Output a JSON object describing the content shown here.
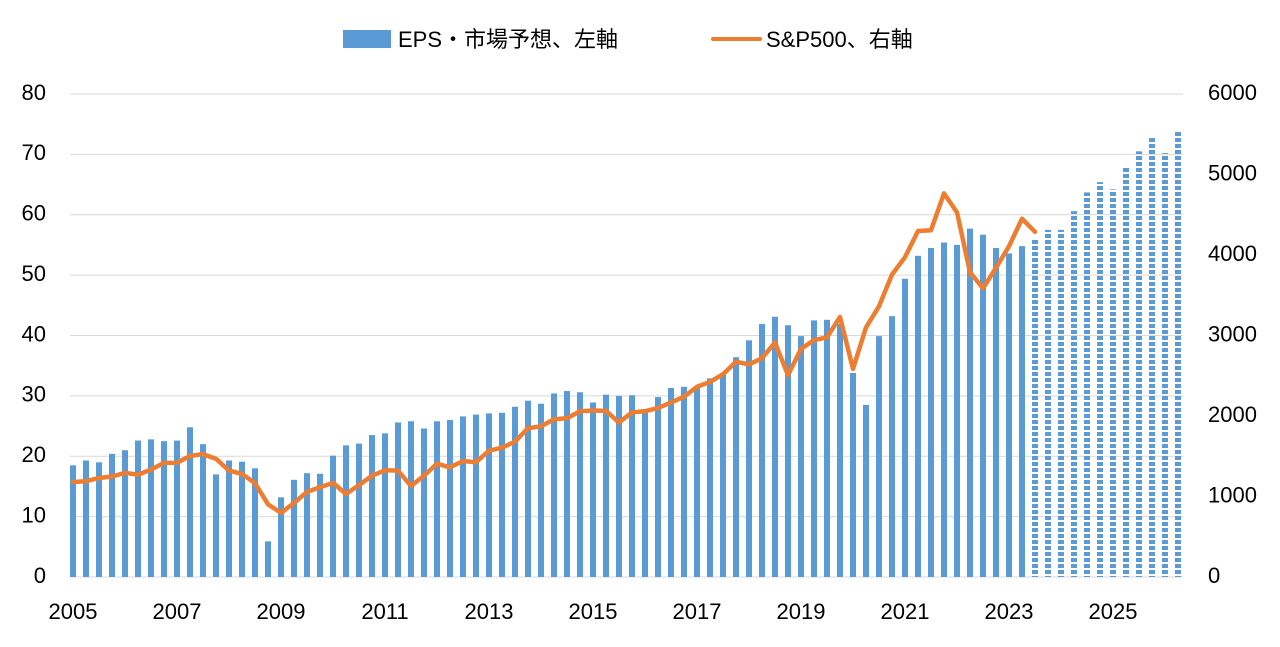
{
  "legend": {
    "eps_label": "EPS・市場予想、左軸",
    "sp500_label": "S&P500、右軸"
  },
  "colors": {
    "eps": "#5B9BD5",
    "sp500": "#ED7D31",
    "grid": "#D9D9D9"
  },
  "chart_data": {
    "type": "bar",
    "title": "",
    "start_year": 2005,
    "periods_per_year": 4,
    "x_tick_labels": [
      "2005",
      "2007",
      "2009",
      "2011",
      "2013",
      "2015",
      "2017",
      "2019",
      "2021",
      "2023",
      "2025"
    ],
    "y_left": {
      "min": 0,
      "max": 80,
      "step": 10,
      "ticks": [
        "0",
        "10",
        "20",
        "30",
        "40",
        "50",
        "60",
        "70",
        "80"
      ]
    },
    "y_right": {
      "min": 0,
      "max": 6000,
      "step": 1000,
      "ticks": [
        "0",
        "1000",
        "2000",
        "3000",
        "4000",
        "5000",
        "6000"
      ]
    },
    "grid": true,
    "legend_position": "top-center",
    "series": [
      {
        "name": "EPS・市場予想、左軸",
        "type": "bar",
        "axis": "left",
        "forecast_start_index": 74,
        "values": [
          18.5,
          19.3,
          19.0,
          20.4,
          21.0,
          22.6,
          22.8,
          22.5,
          22.6,
          24.8,
          22.0,
          17.0,
          19.3,
          19.1,
          18.0,
          5.9,
          13.2,
          16.1,
          17.2,
          17.1,
          20.1,
          21.8,
          22.1,
          23.5,
          23.8,
          25.6,
          25.8,
          24.6,
          25.8,
          26.0,
          26.6,
          26.9,
          27.1,
          27.2,
          28.2,
          29.2,
          28.7,
          30.4,
          30.8,
          30.6,
          28.9,
          30.2,
          30.0,
          30.1,
          27.5,
          29.8,
          31.3,
          31.5,
          31.6,
          32.9,
          33.5,
          36.4,
          39.2,
          41.9,
          43.1,
          41.7,
          39.9,
          42.5,
          42.6,
          41.9,
          33.8,
          28.5,
          39.9,
          43.2,
          49.4,
          53.2,
          54.5,
          55.4,
          55.0,
          57.7,
          56.7,
          54.5,
          53.6,
          54.8,
          56.0,
          57.5,
          57.5,
          60.6,
          63.7,
          65.4,
          64.2,
          67.9,
          70.5,
          72.7,
          70.2,
          73.7
        ]
      },
      {
        "name": "S&P500、右軸",
        "type": "line",
        "axis": "right",
        "values": [
          1180,
          1190,
          1230,
          1248,
          1294,
          1270,
          1335,
          1418,
          1420,
          1503,
          1527,
          1468,
          1322,
          1280,
          1166,
          903,
          797,
          919,
          1057,
          1115,
          1169,
          1031,
          1141,
          1258,
          1326,
          1321,
          1131,
          1258,
          1408,
          1362,
          1441,
          1426,
          1569,
          1606,
          1682,
          1848,
          1872,
          1960,
          1972,
          2059,
          2068,
          2063,
          1920,
          2044,
          2060,
          2099,
          2168,
          2239,
          2363,
          2423,
          2519,
          2674,
          2641,
          2718,
          2914,
          2507,
          2834,
          2942,
          2977,
          3231,
          2585,
          3100,
          3363,
          3756,
          3973,
          4298,
          4308,
          4766,
          4530,
          3785,
          3586,
          3840,
          4109,
          4450,
          4288
        ]
      }
    ]
  }
}
